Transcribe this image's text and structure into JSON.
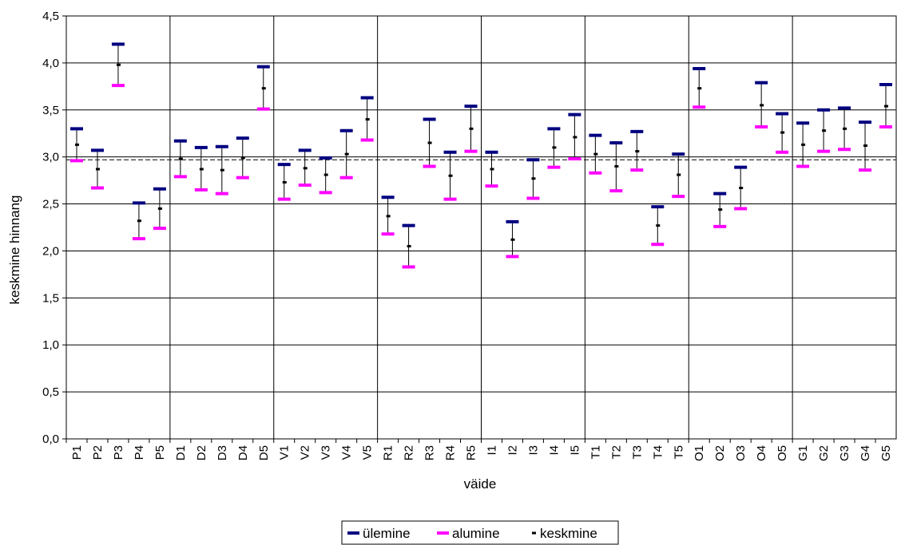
{
  "chart_data": {
    "type": "error-bar",
    "xlabel": "väide",
    "ylabel": "keskmine hinnang",
    "ylim": [
      0,
      4.5
    ],
    "ytick_step": 0.5,
    "ytick_labels": [
      "0,0",
      "0,5",
      "1,0",
      "1,5",
      "2,0",
      "2,5",
      "3,0",
      "3,5",
      "4,0",
      "4,5"
    ],
    "reference_line": 2.97,
    "group_boundaries_after": [
      "P5",
      "D5",
      "V5",
      "R5",
      "I5",
      "T5",
      "O5"
    ],
    "categories": [
      "P1",
      "P2",
      "P3",
      "P4",
      "P5",
      "D1",
      "D2",
      "D3",
      "D4",
      "D5",
      "V1",
      "V2",
      "V3",
      "V4",
      "V5",
      "R1",
      "R2",
      "R3",
      "R4",
      "R5",
      "I1",
      "I2",
      "I3",
      "I4",
      "I5",
      "T1",
      "T2",
      "T3",
      "T4",
      "T5",
      "O1",
      "O2",
      "O3",
      "O4",
      "O5",
      "G1",
      "G2",
      "G3",
      "G4",
      "G5"
    ],
    "series": [
      {
        "name": "ülemine",
        "color": "#000080",
        "values": [
          3.3,
          3.07,
          4.2,
          2.51,
          2.66,
          3.17,
          3.1,
          3.11,
          3.2,
          3.96,
          2.92,
          3.07,
          2.99,
          3.28,
          3.63,
          2.57,
          2.27,
          3.4,
          3.05,
          3.54,
          3.05,
          2.31,
          2.97,
          3.3,
          3.45,
          3.23,
          3.15,
          3.27,
          2.47,
          3.03,
          3.94,
          2.61,
          2.89,
          3.79,
          3.46,
          3.36,
          3.5,
          3.52,
          3.37,
          3.77
        ]
      },
      {
        "name": "alumine",
        "color": "#FF00FF",
        "values": [
          2.96,
          2.67,
          3.76,
          2.13,
          2.24,
          2.79,
          2.65,
          2.61,
          2.78,
          3.51,
          2.55,
          2.7,
          2.62,
          2.78,
          3.18,
          2.18,
          1.83,
          2.9,
          2.55,
          3.06,
          2.69,
          1.94,
          2.56,
          2.89,
          2.98,
          2.83,
          2.64,
          2.86,
          2.07,
          2.58,
          3.53,
          2.26,
          2.45,
          3.32,
          3.05,
          2.9,
          3.06,
          3.08,
          2.86,
          3.32
        ]
      },
      {
        "name": "keskmine",
        "color": "#000000",
        "values": [
          3.13,
          2.87,
          3.98,
          2.32,
          2.45,
          2.98,
          2.87,
          2.86,
          2.99,
          3.73,
          2.73,
          2.88,
          2.81,
          3.03,
          3.4,
          2.37,
          2.05,
          3.15,
          2.8,
          3.3,
          2.87,
          2.12,
          2.77,
          3.1,
          3.21,
          3.03,
          2.9,
          3.06,
          2.27,
          2.81,
          3.73,
          2.44,
          2.67,
          3.55,
          3.26,
          3.13,
          3.28,
          3.3,
          3.12,
          3.54
        ]
      }
    ],
    "legend_position": "bottom-center",
    "grid": true
  }
}
